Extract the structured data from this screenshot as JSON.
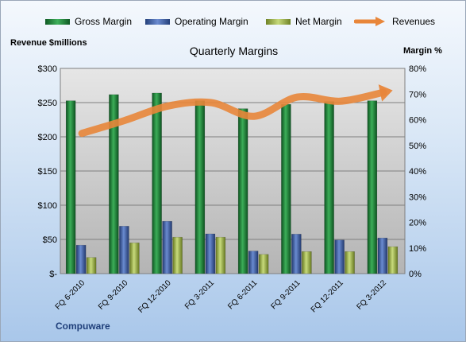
{
  "chart_data": {
    "type": "bar",
    "title": "Quarterly Margins",
    "ylabel_left": "Revenue $millions",
    "ylabel_right": "Margin %",
    "categories": [
      "FQ 6-2010",
      "FQ 9-2010",
      "FQ 12-2010",
      "FQ 3-2011",
      "FQ 6-2011",
      "FQ 9-2011",
      "FQ 12-2011",
      "FQ 3-2012"
    ],
    "series": [
      {
        "name": "Gross Margin",
        "type": "bar",
        "axis": "right",
        "unit": "%",
        "color": "#1e8a3a",
        "values": [
          67.4,
          69.8,
          70.4,
          67.4,
          64.3,
          66.0,
          67.1,
          67.4
        ]
      },
      {
        "name": "Operating Margin",
        "type": "bar",
        "axis": "right",
        "unit": "%",
        "color": "#3f63a8",
        "values": [
          11.1,
          18.5,
          20.4,
          15.5,
          8.8,
          15.4,
          13.1,
          13.9
        ]
      },
      {
        "name": "Net Margin",
        "type": "bar",
        "axis": "right",
        "unit": "%",
        "color": "#a9be55",
        "values": [
          6.3,
          12.0,
          14.2,
          14.2,
          7.5,
          8.6,
          8.6,
          10.5
        ]
      },
      {
        "name": "Revenues",
        "type": "line",
        "axis": "left",
        "unit": "$M",
        "color": "#e8863a",
        "values": [
          205,
          224,
          245,
          250,
          230,
          258,
          252,
          265
        ]
      }
    ],
    "ylim_left": [
      0,
      300
    ],
    "ylim_right": [
      0,
      80
    ],
    "left_ticks": [
      "$-",
      "$50",
      "$100",
      "$150",
      "$200",
      "$250",
      "$300"
    ],
    "right_ticks": [
      "0%",
      "10%",
      "20%",
      "30%",
      "40%",
      "50%",
      "60%",
      "70%",
      "80%"
    ],
    "grid": true,
    "legend": "top"
  },
  "footer": {
    "company": "Compuware"
  }
}
